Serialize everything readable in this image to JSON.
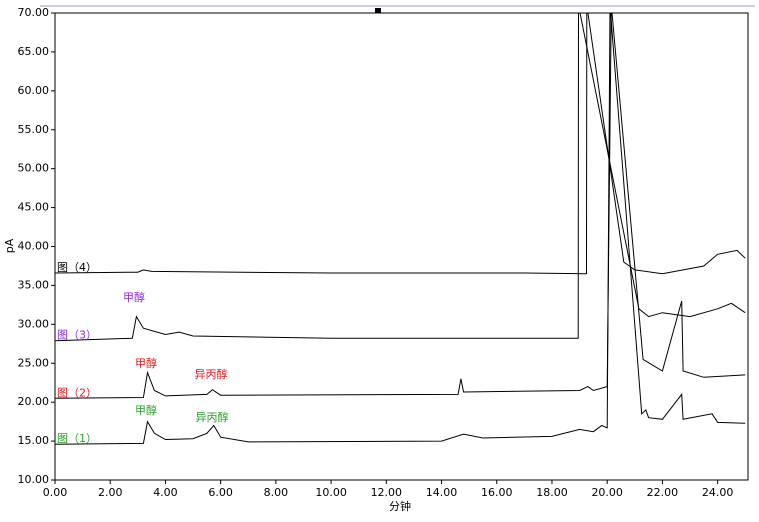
{
  "chart_data": {
    "type": "line",
    "xlabel": "分钟",
    "ylabel": "pA",
    "xlim": [
      0,
      25.1
    ],
    "ylim": [
      10,
      70
    ],
    "xticks": [
      {
        "value": 0,
        "label": "0.00"
      },
      {
        "value": 2,
        "label": "2.00"
      },
      {
        "value": 4,
        "label": "4.00"
      },
      {
        "value": 6,
        "label": "6.00"
      },
      {
        "value": 8,
        "label": "8.00"
      },
      {
        "value": 10,
        "label": "10.00"
      },
      {
        "value": 12,
        "label": "12.00"
      },
      {
        "value": 14,
        "label": "14.00"
      },
      {
        "value": 16,
        "label": "16.00"
      },
      {
        "value": 18,
        "label": "18.00"
      },
      {
        "value": 20,
        "label": "20.00"
      },
      {
        "value": 22,
        "label": "22.00"
      },
      {
        "value": 24,
        "label": "24.00"
      }
    ],
    "yticks": [
      {
        "value": 10,
        "label": "10.00"
      },
      {
        "value": 15,
        "label": "15.00"
      },
      {
        "value": 20,
        "label": "20.00"
      },
      {
        "value": 25,
        "label": "25.00"
      },
      {
        "value": 30,
        "label": "30.00"
      },
      {
        "value": 35,
        "label": "35.00"
      },
      {
        "value": 40,
        "label": "40.00"
      },
      {
        "value": 45,
        "label": "45.00"
      },
      {
        "value": 50,
        "label": "50.00"
      },
      {
        "value": 55,
        "label": "55.00"
      },
      {
        "value": 60,
        "label": "60.00"
      },
      {
        "value": 65,
        "label": "65.00"
      },
      {
        "value": 70,
        "label": "70.00"
      }
    ],
    "series": [
      {
        "name": "图（1）",
        "color": "#000000",
        "label_color": "#2ca02c",
        "x": [
          0,
          3.2,
          3.35,
          3.6,
          4,
          5,
          5.5,
          5.75,
          6,
          7,
          14,
          14.8,
          15.5,
          18,
          19,
          19.5,
          19.8,
          20,
          20.1,
          21.25,
          21.4,
          21.5,
          22,
          22.7,
          22.75,
          23.8,
          24,
          25
        ],
        "values": [
          14.6,
          14.7,
          17.5,
          16,
          15.2,
          15.3,
          16,
          17,
          15.5,
          14.9,
          15,
          15.9,
          15.4,
          15.6,
          16.5,
          16.2,
          17,
          16.7,
          71,
          18.5,
          19,
          18,
          17.8,
          21,
          17.8,
          18.5,
          17.4,
          17.3
        ]
      },
      {
        "name": "图（2）",
        "color": "#000000",
        "label_color": "#e31a1c",
        "x": [
          0,
          3.2,
          3.35,
          3.6,
          4,
          5.5,
          5.7,
          6,
          14.6,
          14.7,
          14.8,
          19,
          19.3,
          19.5,
          20,
          20.15,
          21.3,
          22,
          22.7,
          22.75,
          23.5,
          25
        ],
        "values": [
          20.5,
          20.6,
          23.8,
          21.5,
          20.8,
          21,
          21.6,
          20.9,
          21,
          23,
          21.3,
          21.5,
          22,
          21.5,
          22,
          71,
          25.5,
          24,
          33,
          24,
          23.2,
          23.5
        ]
      },
      {
        "name": "图（3）",
        "color": "#000000",
        "label_color": "#8a2be2",
        "x": [
          0,
          2.8,
          2.95,
          3.2,
          4,
          4.5,
          5,
          10,
          18.95,
          18.96,
          21.15,
          21.5,
          22,
          23,
          24,
          24.5,
          25
        ],
        "values": [
          27.9,
          28.2,
          31,
          29.5,
          28.7,
          29,
          28.5,
          28.2,
          28.2,
          71,
          32,
          31,
          31.5,
          31,
          32,
          32.7,
          31.5
        ]
      },
      {
        "name": "图（4）",
        "color": "#000000",
        "label_color": "#000000",
        "x": [
          0,
          3,
          3.2,
          3.5,
          10,
          17,
          19.25,
          19.26,
          20.6,
          21,
          22,
          23.5,
          24,
          24.7,
          25
        ],
        "values": [
          36.6,
          36.7,
          37,
          36.8,
          36.6,
          36.6,
          36.5,
          71,
          38,
          37,
          36.5,
          37.5,
          39,
          39.5,
          38.5
        ]
      }
    ],
    "annotations": [
      {
        "text": "甲醇",
        "color": "#8a2be2"
      },
      {
        "text": "甲醇",
        "color": "#e31a1c"
      },
      {
        "text": "异丙醇",
        "color": "#e31a1c"
      },
      {
        "text": "甲醇",
        "color": "#2ca02c"
      },
      {
        "text": "异丙醇",
        "color": "#2ca02c"
      }
    ]
  }
}
